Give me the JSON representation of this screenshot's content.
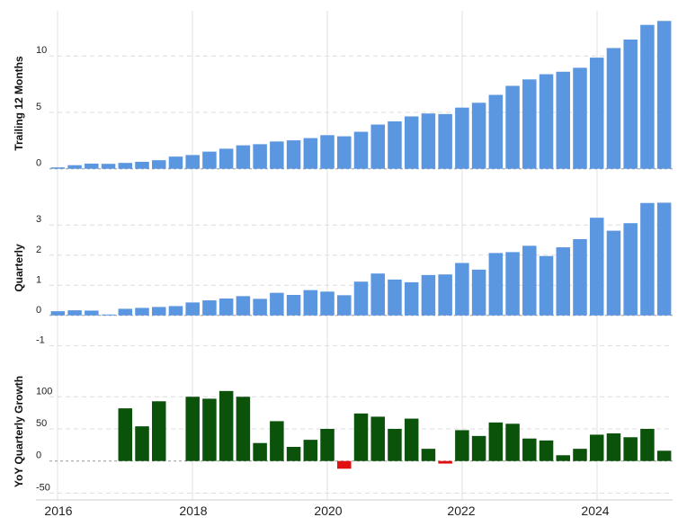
{
  "chart_data": [
    {
      "type": "bar",
      "id": "trailing",
      "ylabel": "Trailing 12 Months",
      "ylim": [
        -0.5,
        14
      ],
      "yticks": [
        0,
        5,
        10
      ],
      "ytick_labels": [
        "0",
        "5",
        "10"
      ],
      "color": "#5b96e0",
      "values": [
        0.12,
        0.32,
        0.46,
        0.44,
        0.52,
        0.62,
        0.76,
        1.08,
        1.22,
        1.52,
        1.78,
        2.08,
        2.18,
        2.42,
        2.52,
        2.72,
        2.98,
        2.88,
        3.28,
        3.92,
        4.2,
        4.64,
        4.9,
        4.85,
        5.42,
        5.85,
        6.55,
        7.35,
        7.92,
        8.38,
        8.6,
        8.95,
        9.85,
        10.7,
        11.45,
        12.75,
        13.1
      ]
    },
    {
      "type": "bar",
      "id": "quarterly",
      "ylabel": "Quarterly",
      "ylim": [
        -1.05,
        4.2
      ],
      "yticks": [
        -1,
        0,
        1,
        2,
        3
      ],
      "ytick_labels": [
        "-1",
        "0",
        "1",
        "2",
        "3"
      ],
      "color": "#5b96e0",
      "values": [
        0.14,
        0.17,
        0.16,
        0.03,
        0.22,
        0.25,
        0.28,
        0.31,
        0.43,
        0.5,
        0.56,
        0.64,
        0.55,
        0.75,
        0.68,
        0.84,
        0.79,
        0.67,
        1.12,
        1.39,
        1.19,
        1.1,
        1.34,
        1.36,
        1.74,
        1.52,
        2.07,
        2.1,
        2.31,
        1.97,
        2.26,
        2.53,
        3.24,
        2.81,
        3.06,
        3.73,
        3.74
      ]
    },
    {
      "type": "bar",
      "id": "yoy",
      "ylabel": "YoY Quarterly Growth",
      "ylim": [
        -55,
        155
      ],
      "yticks": [
        -50,
        0,
        50,
        100
      ],
      "ytick_labels": [
        "-50",
        "0",
        "50",
        "100"
      ],
      "positive_color": "#0b520b",
      "negative_color": "#e01010",
      "values": [
        null,
        null,
        null,
        null,
        82,
        54,
        93,
        null,
        100,
        97,
        109,
        100,
        28,
        62,
        22,
        33,
        50,
        -12,
        74,
        69,
        50,
        66,
        19,
        -4,
        48,
        39,
        60,
        58,
        35,
        32,
        9,
        19,
        41,
        43,
        37,
        50,
        16
      ]
    }
  ],
  "x_axis": {
    "ticks": [
      "2016",
      "2018",
      "2020",
      "2022",
      "2024"
    ]
  }
}
